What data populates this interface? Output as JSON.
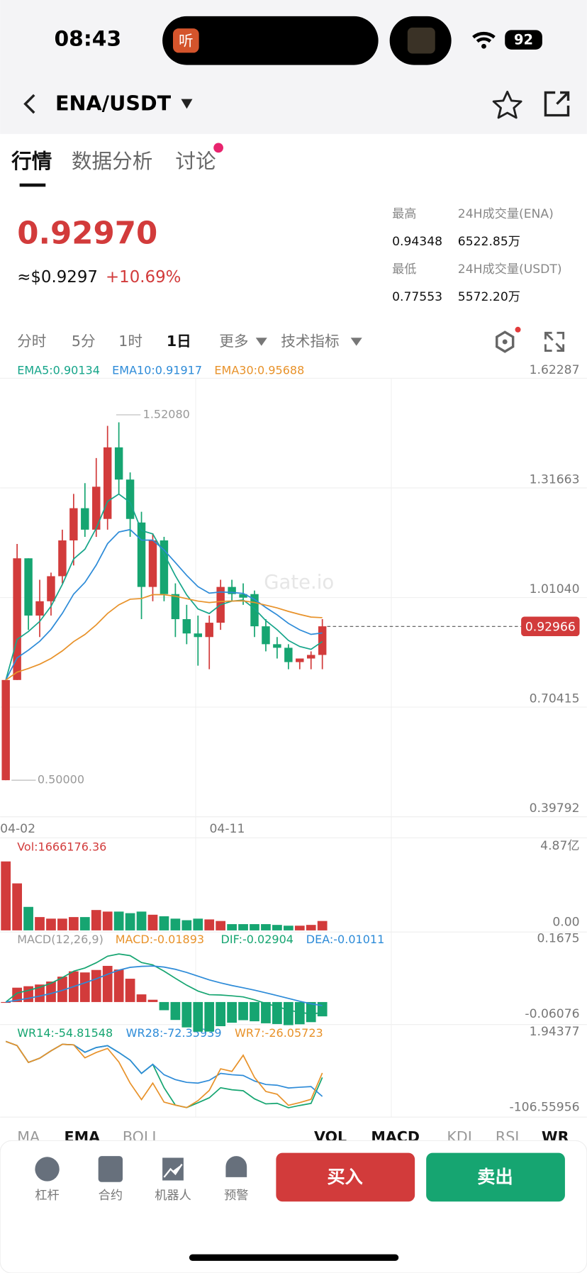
{
  "status": {
    "time": "08:43",
    "island_label": "听",
    "battery": "92"
  },
  "header": {
    "pair": "ENA/USDT"
  },
  "tabs": [
    "行情",
    "数据分析",
    "讨论"
  ],
  "price": {
    "last": "0.92970",
    "usd": "≈$0.9297",
    "change": "+10.69%"
  },
  "stats": [
    {
      "label": "最高",
      "value": "0.94348"
    },
    {
      "label": "24H成交量(ENA)",
      "value": "6522.85万"
    },
    {
      "label": "最低",
      "value": "0.77553"
    },
    {
      "label": "24H成交量(USDT)",
      "value": "5572.20万"
    }
  ],
  "intervals": [
    "分时",
    "5分",
    "1时",
    "1日",
    "更多",
    "技术指标"
  ],
  "ema_legend": [
    "EMA5:0.90134",
    "EMA10:0.91917",
    "EMA30:0.95688"
  ],
  "watermark": "Gate.io",
  "chart_data": {
    "type": "candlestick",
    "up_color": "#d23b3b",
    "down_color": "#16a571",
    "open": [
      0.5,
      0.78,
      1.12,
      0.96,
      1.0,
      1.07,
      1.17,
      1.26,
      1.2,
      1.23,
      1.43,
      1.34,
      1.22,
      1.04,
      1.17,
      1.02,
      0.95,
      0.91,
      0.9,
      0.94,
      1.04,
      1.02,
      1.02,
      0.93,
      0.88,
      0.87,
      0.83,
      0.84,
      0.85
    ],
    "high": [
      0.78,
      1.16,
      1.12,
      1.06,
      1.08,
      1.2,
      1.3,
      1.33,
      1.4,
      1.49,
      1.5,
      1.36,
      1.25,
      1.19,
      1.18,
      1.05,
      0.99,
      0.96,
      0.96,
      1.06,
      1.06,
      1.05,
      1.03,
      0.95,
      0.9,
      0.88,
      0.84,
      0.86,
      0.95
    ],
    "low": [
      0.5,
      0.78,
      0.92,
      0.9,
      0.96,
      1.05,
      1.1,
      1.18,
      1.18,
      1.2,
      1.3,
      1.18,
      0.95,
      1.0,
      1.0,
      0.9,
      0.88,
      0.82,
      0.81,
      0.92,
      1.0,
      0.99,
      0.9,
      0.86,
      0.84,
      0.81,
      0.81,
      0.81,
      0.81
    ],
    "close": [
      0.78,
      1.12,
      0.96,
      1.0,
      1.07,
      1.17,
      1.26,
      1.2,
      1.32,
      1.43,
      1.34,
      1.23,
      1.04,
      1.17,
      1.02,
      0.95,
      0.91,
      0.9,
      0.94,
      1.04,
      1.02,
      1.01,
      0.93,
      0.88,
      0.87,
      0.83,
      0.84,
      0.85,
      0.93
    ],
    "ylim": [
      0.39792,
      1.62287
    ],
    "yticks": [
      1.62287,
      1.31663,
      {
        "value": 1.0104,
        "label": "1.01040"
      },
      0.70415,
      0.39792
    ],
    "last_price": {
      "value": 0.92966,
      "label": "0.92966"
    },
    "high_marker": {
      "value": 1.5208,
      "label": "1.52080"
    },
    "low_marker": {
      "value": 0.5,
      "label": "0.50000"
    },
    "x_labels": [
      "04-02",
      "04-11"
    ],
    "grid": true,
    "volume": {
      "legend": "Vol:1666176.36",
      "values": [
        4.4,
        3.0,
        1.5,
        0.85,
        0.75,
        0.75,
        0.85,
        0.85,
        1.3,
        1.2,
        1.2,
        1.1,
        1.2,
        1.0,
        0.9,
        0.75,
        0.65,
        0.75,
        0.7,
        0.6,
        0.4,
        0.4,
        0.4,
        0.4,
        0.35,
        0.3,
        0.3,
        0.35,
        0.6
      ],
      "ylim": [
        0,
        4.87
      ],
      "yticks": [
        {
          "value": 4.87,
          "label": "4.87亿"
        },
        {
          "value": 0,
          "label": "0.00"
        }
      ]
    },
    "macd": {
      "legend": [
        "MACD(12,26,9)",
        "MACD:-0.01893",
        "DIF:-0.02904",
        "DEA:-0.01011"
      ],
      "ylim": [
        -0.06076,
        0.1675
      ],
      "yticks": [
        0.1675,
        -0.06076
      ]
    },
    "wr": {
      "legend": [
        "WR14:-54.81548",
        "WR28:-72.35939",
        "WR7:-26.05723"
      ],
      "ylim": [
        -106.55956,
        1.94377
      ],
      "yticks": [
        1.94377,
        -106.55956
      ]
    }
  },
  "indicator_tabs": {
    "main": [
      "MA",
      "EMA",
      "BOLL"
    ],
    "sub": [
      "VOL",
      "MACD",
      "KDJ",
      "RSI",
      "WR"
    ]
  },
  "nav": [
    "杠杆",
    "合约",
    "机器人",
    "预警"
  ],
  "buttons": {
    "buy": "买入",
    "sell": "卖出"
  }
}
